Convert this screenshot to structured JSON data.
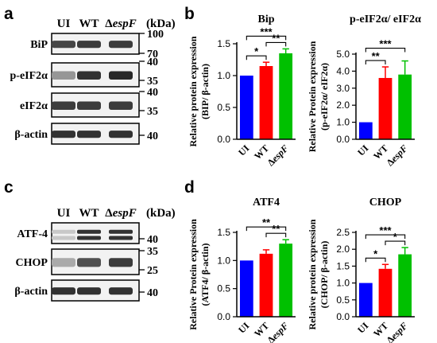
{
  "panels": {
    "a": "a",
    "b": "b",
    "c": "c",
    "d": "d"
  },
  "blots": [
    {
      "panel": "a",
      "lanes": [
        "UI",
        "WT",
        "ΔespF"
      ],
      "kda": "(kDa)",
      "rows": [
        {
          "name": "BiP",
          "markers": [
            "100",
            "70"
          ],
          "intensity": [
            0.75,
            0.8,
            0.8
          ]
        },
        {
          "name": "p-eIF2α",
          "markers": [
            "40",
            "35"
          ],
          "intensity": [
            0.35,
            0.85,
            0.9
          ]
        },
        {
          "name": "eIF2α",
          "markers": [
            "40",
            "35"
          ],
          "intensity": [
            0.8,
            0.8,
            0.8
          ]
        },
        {
          "name": "β-actin",
          "markers": [
            "40"
          ],
          "intensity": [
            0.85,
            0.85,
            0.85
          ]
        }
      ]
    },
    {
      "panel": "c",
      "lanes": [
        "UI",
        "WT",
        "ΔespF"
      ],
      "kda": "(kDa)",
      "rows": [
        {
          "name": "ATF-4",
          "markers": [
            "40"
          ],
          "intensity": [
            0.1,
            0.85,
            0.85
          ]
        },
        {
          "name": "CHOP",
          "markers": [
            "35",
            "25"
          ],
          "intensity": [
            0.25,
            0.7,
            0.8
          ]
        },
        {
          "name": "β-actin",
          "markers": [
            "40"
          ],
          "intensity": [
            0.85,
            0.85,
            0.85
          ]
        }
      ]
    }
  ],
  "chart_data": [
    {
      "type": "bar",
      "title": "Bip",
      "categories": [
        "UI",
        "WT",
        "ΔespF"
      ],
      "values": [
        1.0,
        1.15,
        1.35
      ],
      "errors": [
        0.0,
        0.06,
        0.07
      ],
      "colors": [
        "#0000ff",
        "#ff0000",
        "#00c000"
      ],
      "ylabel": [
        "Relative protein expression",
        "(BIP/ β-actin)"
      ],
      "ylim": [
        0,
        1.5
      ],
      "yticks": [
        "0.0",
        "0.5",
        "1.0",
        "1.5"
      ],
      "significance": [
        {
          "from": 0,
          "to": 1,
          "label": "*"
        },
        {
          "from": 1,
          "to": 2,
          "label": "**"
        },
        {
          "from": 0,
          "to": 2,
          "label": "***"
        }
      ]
    },
    {
      "type": "bar",
      "title": "p-eIF2α/ eIF2α",
      "categories": [
        "UI",
        "WT",
        "ΔespF"
      ],
      "values": [
        1.0,
        3.6,
        3.8
      ],
      "errors": [
        0.0,
        0.65,
        0.8
      ],
      "colors": [
        "#0000ff",
        "#ff0000",
        "#00c000"
      ],
      "ylabel": [
        "Relative Protein expression",
        "(p-eIF2α/ eIF2α)"
      ],
      "ylim": [
        0,
        5
      ],
      "yticks": [
        "0.0",
        "1.0",
        "2.0",
        "3.0",
        "4.0",
        "5.0"
      ],
      "significance": [
        {
          "from": 0,
          "to": 1,
          "label": "**"
        },
        {
          "from": 0,
          "to": 2,
          "label": "***"
        }
      ]
    },
    {
      "type": "bar",
      "title": "ATF4",
      "categories": [
        "UI",
        "WT",
        "ΔespF"
      ],
      "values": [
        1.0,
        1.12,
        1.3
      ],
      "errors": [
        0.0,
        0.07,
        0.07
      ],
      "colors": [
        "#0000ff",
        "#ff0000",
        "#00c000"
      ],
      "ylabel": [
        "Relative Protein expression",
        "(ATF4/ β-actin)"
      ],
      "ylim": [
        0,
        1.5
      ],
      "yticks": [
        "0.0",
        "0.5",
        "1.0",
        "1.5"
      ],
      "significance": [
        {
          "from": 1,
          "to": 2,
          "label": "**"
        },
        {
          "from": 0,
          "to": 2,
          "label": "**"
        }
      ]
    },
    {
      "type": "bar",
      "title": "CHOP",
      "categories": [
        "UI",
        "WT",
        "ΔespF"
      ],
      "values": [
        1.0,
        1.42,
        1.85
      ],
      "errors": [
        0.0,
        0.13,
        0.2
      ],
      "colors": [
        "#0000ff",
        "#ff0000",
        "#00c000"
      ],
      "ylabel": [
        "Relative protein expression",
        "(CHOP/ β-actin)"
      ],
      "ylim": [
        0,
        2.5
      ],
      "yticks": [
        "0.0",
        "0.5",
        "1.0",
        "1.5",
        "2.0",
        "2.5"
      ],
      "significance": [
        {
          "from": 0,
          "to": 1,
          "label": "*"
        },
        {
          "from": 1,
          "to": 2,
          "label": "*"
        },
        {
          "from": 0,
          "to": 2,
          "label": "***"
        }
      ]
    }
  ]
}
